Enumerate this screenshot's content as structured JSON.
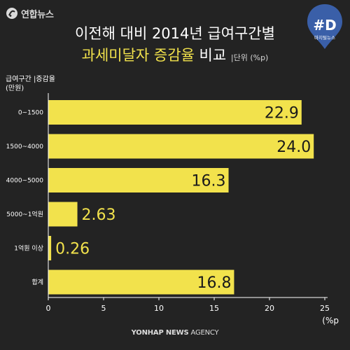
{
  "brand": {
    "logo_text": "연합뉴스"
  },
  "badge": {
    "label": "#D",
    "sub": "마지털뉴스"
  },
  "title": {
    "line1": "이전해 대비 2014년 급여구간별",
    "line2_highlight": "과세미달자 증감율",
    "line2_rest": " 비교",
    "unit": "|단위 (%p)"
  },
  "axis_head": {
    "line1": "급여구간 |증감율",
    "line2": "(만원)"
  },
  "unit_label": "(%p",
  "footer": {
    "bold": "YONHAP NEWS",
    "rest": " AGENCY"
  },
  "colors": {
    "bar": "#f2e24c",
    "background": "#232323",
    "axis": "#ffffff"
  },
  "chart_data": {
    "type": "bar",
    "orientation": "horizontal",
    "categories": [
      "0~1500",
      "1500~4000",
      "4000~5000",
      "5000~1억원",
      "1억원 이상",
      "합계"
    ],
    "values": [
      22.9,
      24.0,
      16.3,
      2.63,
      0.26,
      16.8
    ],
    "value_labels": [
      "22.9",
      "24.0",
      "16.3",
      "2.63",
      "0.26",
      "16.8"
    ],
    "xlim": [
      0,
      25
    ],
    "xticks": [
      0,
      5,
      10,
      15,
      20,
      25
    ],
    "title": "이전해 대비 2014년 급여구간별 과세미달자 증감율 비교",
    "xlabel": "(%p",
    "ylabel": "급여구간 |증감율 (만원)",
    "grid": false
  }
}
